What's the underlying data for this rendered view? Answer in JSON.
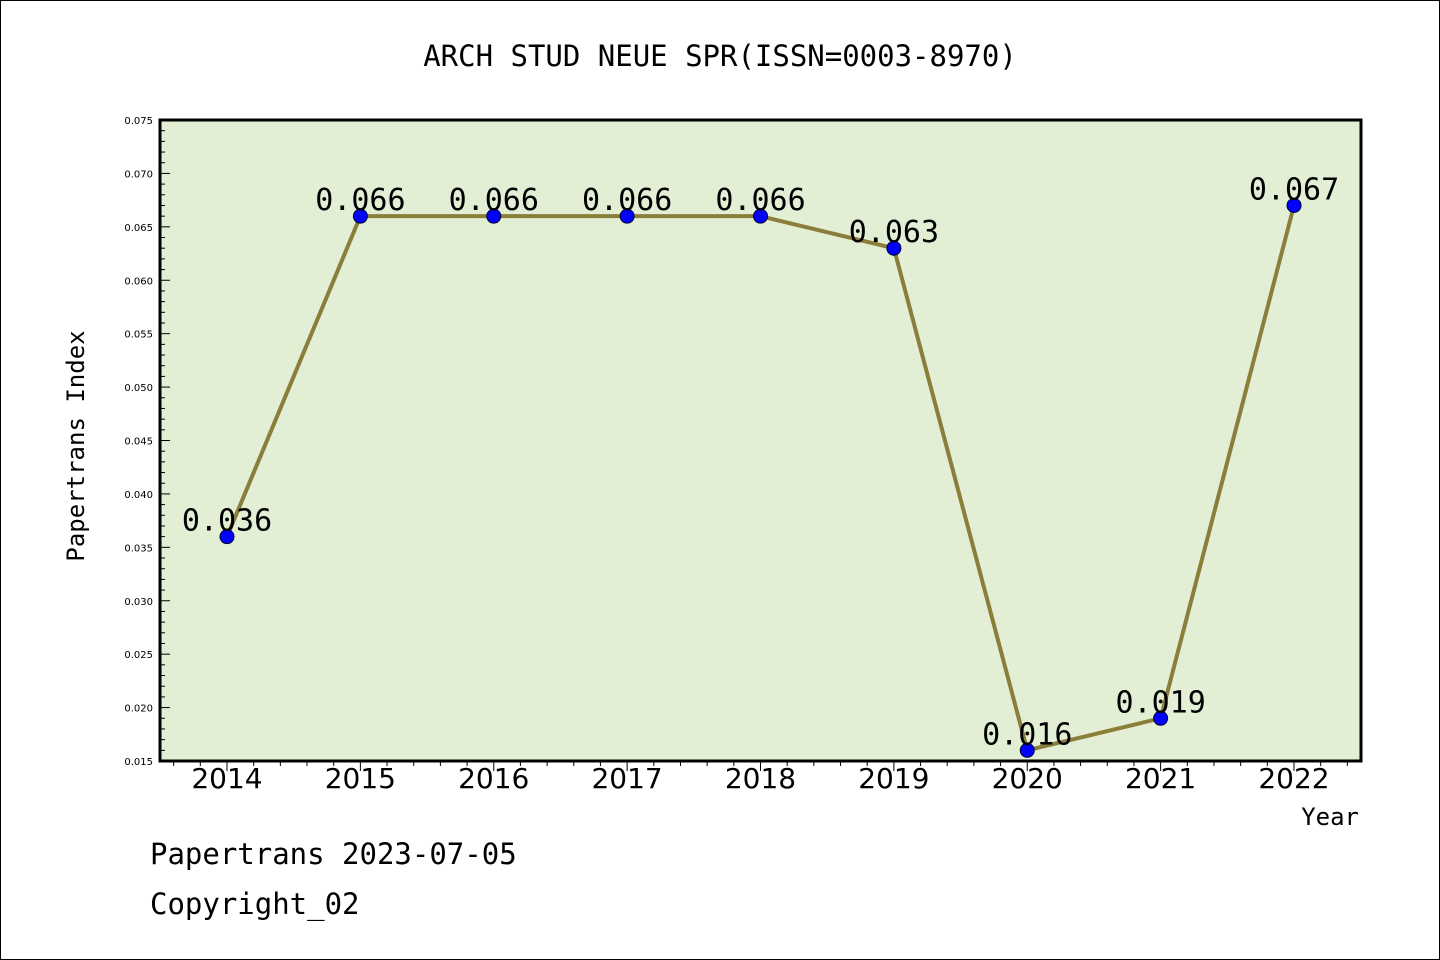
{
  "chart_data": {
    "type": "line",
    "title": "ARCH STUD NEUE SPR(ISSN=0003-8970)",
    "xlabel": "Year",
    "ylabel": "Papertrans Index",
    "x": [
      "2014",
      "2015",
      "2016",
      "2017",
      "2018",
      "2019",
      "2020",
      "2021",
      "2022"
    ],
    "series": [
      {
        "values": [
          0.036,
          0.066,
          0.066,
          0.066,
          0.066,
          0.063,
          0.016,
          0.019,
          0.067
        ],
        "labels": [
          "0.036",
          "0.066",
          "0.066",
          "0.066",
          "0.066",
          "0.063",
          "0.016",
          "0.019",
          "0.067"
        ]
      }
    ],
    "ylim": [
      0.015,
      0.075
    ],
    "yticks": [
      "0.015",
      "0.020",
      "0.025",
      "0.030",
      "0.035",
      "0.040",
      "0.045",
      "0.050",
      "0.055",
      "0.060",
      "0.065",
      "0.070",
      "0.075"
    ],
    "grid": false,
    "colors": {
      "plot_bg": "#e2efd5",
      "line": "#8b7d3a",
      "marker": "#0000ff"
    }
  },
  "footer": {
    "line1": "Papertrans 2023-07-05",
    "line2": "Copyright_02"
  }
}
